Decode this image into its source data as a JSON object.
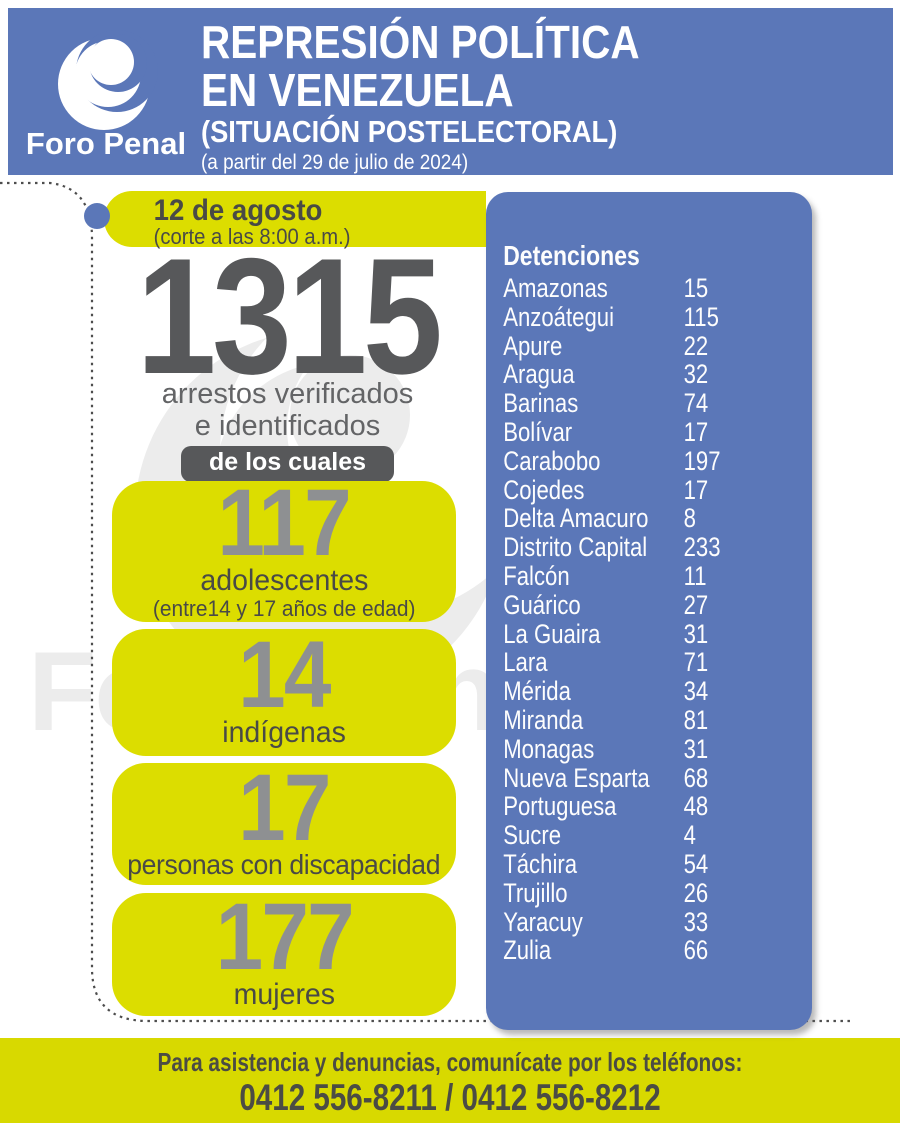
{
  "header": {
    "org_name": "Foro Penal",
    "title_line1": "REPRESIÓN POLÍTICA",
    "title_line2": "EN VENEZUELA",
    "subtitle": "(SITUACIÓN POSTELECTORAL)",
    "since_note": "(a partir del 29 de julio de 2024)"
  },
  "report": {
    "date": "12 de agosto",
    "cutoff": "(corte a las 8:00 a.m.)",
    "total": "1315",
    "total_caption_line1": "arrestos verificados",
    "total_caption_line2": "e identificados",
    "breakdown_label": "de los cuales",
    "stats": [
      {
        "value": "117",
        "label": "adolescentes",
        "sublabel": "(entre14 y 17 años de edad)"
      },
      {
        "value": "14",
        "label": "indígenas",
        "sublabel": ""
      },
      {
        "value": "17",
        "label": "personas con discapacidad",
        "sublabel": ""
      },
      {
        "value": "177",
        "label": "mujeres",
        "sublabel": ""
      }
    ]
  },
  "detentions": {
    "title": "Detenciones",
    "rows": [
      {
        "state": "Amazonas",
        "count": "15"
      },
      {
        "state": "Anzoátegui",
        "count": "115"
      },
      {
        "state": "Apure",
        "count": "22"
      },
      {
        "state": "Aragua",
        "count": "32"
      },
      {
        "state": "Barinas",
        "count": "74"
      },
      {
        "state": "Bolívar",
        "count": "17"
      },
      {
        "state": "Carabobo",
        "count": "197"
      },
      {
        "state": "Cojedes",
        "count": "17"
      },
      {
        "state": "Delta Amacuro",
        "count": "8"
      },
      {
        "state": "Distrito Capital",
        "count": "233"
      },
      {
        "state": "Falcón",
        "count": "11"
      },
      {
        "state": "Guárico",
        "count": "27"
      },
      {
        "state": "La Guaira",
        "count": "31"
      },
      {
        "state": "Lara",
        "count": "71"
      },
      {
        "state": "Mérida",
        "count": "34"
      },
      {
        "state": "Miranda",
        "count": "81"
      },
      {
        "state": "Monagas",
        "count": "31"
      },
      {
        "state": "Nueva Esparta",
        "count": "68"
      },
      {
        "state": "Portuguesa",
        "count": "48"
      },
      {
        "state": "Sucre",
        "count": "4"
      },
      {
        "state": "Táchira",
        "count": "54"
      },
      {
        "state": "Trujillo",
        "count": "26"
      },
      {
        "state": "Yaracuy",
        "count": "33"
      },
      {
        "state": "Zulia",
        "count": "66"
      }
    ]
  },
  "footer": {
    "line1": "Para asistencia y denuncias, comunícate por los teléfonos:",
    "phones": "0412 556-8211 / 0412 556-8212"
  },
  "watermark": "Foro Penal",
  "colors": {
    "blue": "#5b77b8",
    "yellow": "#dcdd00",
    "footer_yellow": "#d8d900",
    "dark_gray": "#58595b",
    "number_gray": "#8e9092"
  },
  "chart_data": {
    "type": "table",
    "title": "Detenciones",
    "categories": [
      "Amazonas",
      "Anzoátegui",
      "Apure",
      "Aragua",
      "Barinas",
      "Bolívar",
      "Carabobo",
      "Cojedes",
      "Delta Amacuro",
      "Distrito Capital",
      "Falcón",
      "Guárico",
      "La Guaira",
      "Lara",
      "Mérida",
      "Miranda",
      "Monagas",
      "Nueva Esparta",
      "Portuguesa",
      "Sucre",
      "Táchira",
      "Trujillo",
      "Yaracuy",
      "Zulia"
    ],
    "values": [
      15,
      115,
      22,
      32,
      74,
      17,
      197,
      17,
      8,
      233,
      11,
      27,
      31,
      71,
      34,
      81,
      31,
      68,
      48,
      4,
      54,
      26,
      33,
      66
    ],
    "total": 1315,
    "subgroups": {
      "adolescentes": 117,
      "indigenas": 14,
      "personas_con_discapacidad": 17,
      "mujeres": 177
    }
  }
}
